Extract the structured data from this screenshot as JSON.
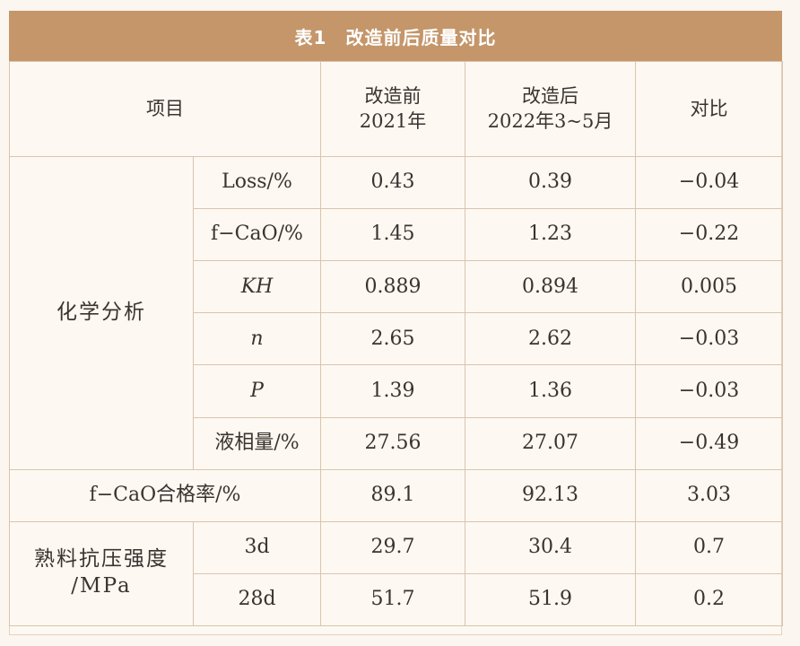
{
  "title": "表1　改造前后质量对比",
  "header": {
    "item": "项目",
    "before_line1": "改造前",
    "before_line2": "2021年",
    "after_line1": "改造后",
    "after_line2": "2022年3~5月",
    "compare": "对比"
  },
  "chem": {
    "category": "化学分析",
    "rows": [
      {
        "label": "Loss/%",
        "before": "0.43",
        "after": "0.39",
        "diff": "−0.04"
      },
      {
        "label": "f−CaO/%",
        "before": "1.45",
        "after": "1.23",
        "diff": "−0.22"
      },
      {
        "label": "KH",
        "before": "0.889",
        "after": "0.894",
        "diff": "0.005"
      },
      {
        "label": "n",
        "before": "2.65",
        "after": "2.62",
        "diff": "−0.03"
      },
      {
        "label": "P",
        "before": "1.39",
        "after": "1.36",
        "diff": "−0.03"
      },
      {
        "label": "液相量/%",
        "before": "27.56",
        "after": "27.07",
        "diff": "−0.49"
      }
    ]
  },
  "pass_rate": {
    "label": "f−CaO合格率/%",
    "before": "89.1",
    "after": "92.13",
    "diff": "3.03"
  },
  "strength": {
    "category_line1": "熟料抗压强度",
    "category_line2": "/MPa",
    "rows": [
      {
        "label": "3d",
        "before": "29.7",
        "after": "30.4",
        "diff": "0.7"
      },
      {
        "label": "28d",
        "before": "51.7",
        "after": "51.9",
        "diff": "0.2"
      }
    ]
  }
}
